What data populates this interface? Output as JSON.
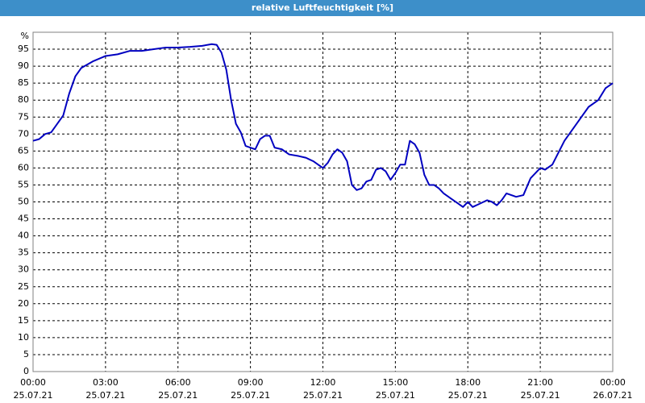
{
  "chart_data": {
    "type": "line",
    "title": "relative Luftfeuchtigkeit [%]",
    "y_unit": "%",
    "ylim": [
      0,
      100
    ],
    "yticks": [
      0,
      5,
      10,
      15,
      20,
      25,
      30,
      35,
      40,
      45,
      50,
      55,
      60,
      65,
      70,
      75,
      80,
      85,
      90,
      95
    ],
    "xlim": [
      0,
      24
    ],
    "xticks": [
      {
        "value": 0,
        "label": "00:00"
      },
      {
        "value": 3,
        "label": "03:00"
      },
      {
        "value": 6,
        "label": "06:00"
      },
      {
        "value": 9,
        "label": "09:00"
      },
      {
        "value": 12,
        "label": "12:00"
      },
      {
        "value": 15,
        "label": "15:00"
      },
      {
        "value": 18,
        "label": "18:00"
      },
      {
        "value": 21,
        "label": "21:00"
      },
      {
        "value": 24,
        "label": "00:00"
      }
    ],
    "xtick_dates": [
      "25.07.21",
      "25.07.21",
      "25.07.21",
      "25.07.21",
      "25.07.21",
      "25.07.21",
      "25.07.21",
      "25.07.21",
      "26.07.21"
    ],
    "grid": true,
    "x": [
      0,
      0.25,
      0.5,
      0.75,
      1,
      1.25,
      1.5,
      1.75,
      2,
      2.5,
      3,
      3.5,
      4,
      4.5,
      5,
      5.5,
      6,
      6.5,
      7,
      7.4,
      7.6,
      7.8,
      8,
      8.2,
      8.4,
      8.6,
      8.8,
      9,
      9.2,
      9.4,
      9.6,
      9.8,
      10,
      10.3,
      10.6,
      11,
      11.3,
      11.6,
      12,
      12.2,
      12.4,
      12.6,
      12.8,
      13,
      13.2,
      13.4,
      13.6,
      13.8,
      14,
      14.2,
      14.4,
      14.6,
      14.8,
      15,
      15.2,
      15.4,
      15.6,
      15.8,
      16,
      16.2,
      16.4,
      16.6,
      16.8,
      17,
      17.3,
      17.6,
      17.8,
      18,
      18.2,
      18.5,
      18.8,
      19,
      19.2,
      19.4,
      19.6,
      19.8,
      20,
      20.3,
      20.6,
      21,
      21.2,
      21.5,
      22,
      22.5,
      23,
      23.4,
      23.7,
      24
    ],
    "series": [
      {
        "name": "relative Luftfeuchtigkeit",
        "color": "#0000c0",
        "values": [
          68,
          68.5,
          70,
          70.5,
          73,
          75.5,
          82,
          87,
          89.5,
          91.5,
          93,
          93.5,
          94.5,
          94.5,
          95,
          95.5,
          95.5,
          95.7,
          96,
          96.5,
          96.3,
          94,
          89,
          80,
          73,
          70.5,
          66.5,
          66,
          65.5,
          68.5,
          69.5,
          69.5,
          66,
          65.5,
          64,
          63.5,
          63,
          62,
          60,
          61.5,
          64,
          65.5,
          64.5,
          62,
          55,
          53.5,
          54,
          56,
          56.5,
          59.5,
          60,
          59,
          56.5,
          58.5,
          61,
          61,
          68,
          67,
          64.5,
          58,
          55,
          55,
          54,
          52.5,
          51,
          49.5,
          48.5,
          50,
          48.5,
          49.5,
          50.5,
          50,
          49,
          50.5,
          52.5,
          52,
          51.5,
          52,
          57,
          60,
          59.5,
          61,
          68,
          73,
          78,
          80,
          83.5,
          85
        ]
      }
    ]
  }
}
